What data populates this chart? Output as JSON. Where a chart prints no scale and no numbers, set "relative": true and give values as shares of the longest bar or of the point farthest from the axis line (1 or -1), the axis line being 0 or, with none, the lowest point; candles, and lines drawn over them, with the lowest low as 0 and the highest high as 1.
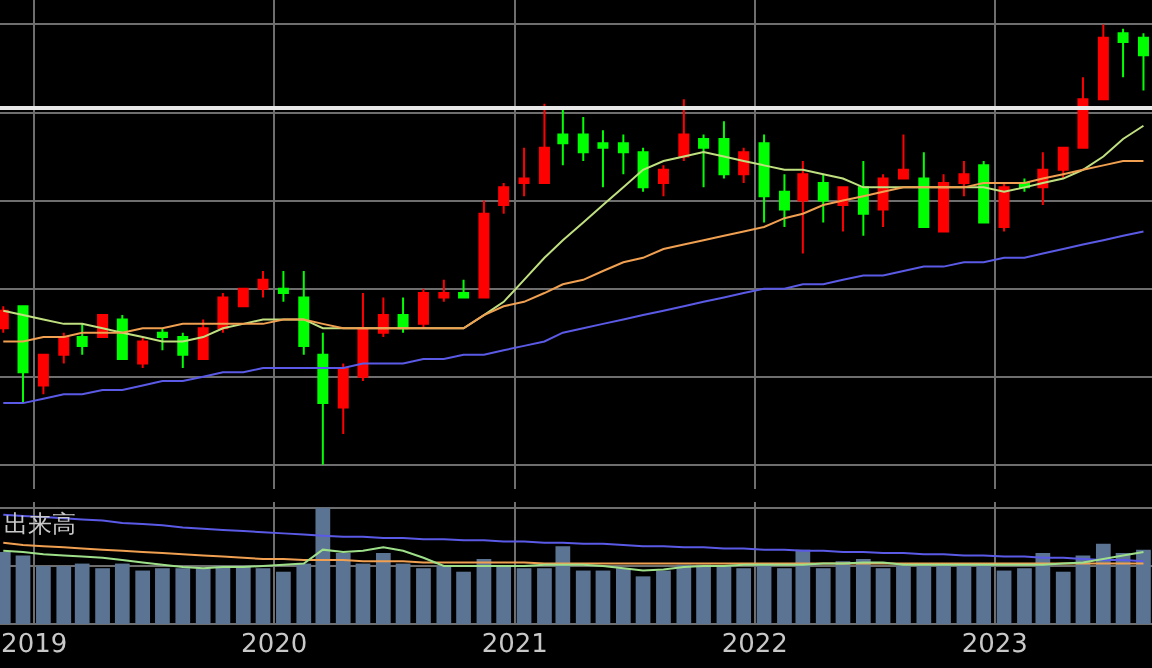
{
  "chart_data": [
    {
      "type": "candlestick",
      "relative": true,
      "tick_labels": false,
      "grid": true,
      "x": [
        "2018-11-15",
        "2018-12-15",
        "2019-01-15",
        "2019-02-15",
        "2019-03-15",
        "2019-04-15",
        "2019-05-15",
        "2019-06-15",
        "2019-07-15",
        "2019-08-15",
        "2019-09-15",
        "2019-10-15",
        "2019-11-15",
        "2019-12-15",
        "2020-01-15",
        "2020-02-15",
        "2020-03-15",
        "2020-04-15",
        "2020-05-15",
        "2020-06-15",
        "2020-07-15",
        "2020-08-15",
        "2020-09-15",
        "2020-10-15",
        "2020-11-15",
        "2020-12-15",
        "2021-01-15",
        "2021-02-15",
        "2021-03-15",
        "2021-04-15",
        "2021-05-15",
        "2021-06-15",
        "2021-07-15",
        "2021-08-15",
        "2021-09-15",
        "2021-10-15",
        "2021-11-15",
        "2021-12-15",
        "2022-01-15",
        "2022-02-15",
        "2022-03-15",
        "2022-04-15",
        "2022-05-15",
        "2022-06-15",
        "2022-07-15",
        "2022-08-15",
        "2022-09-15",
        "2022-10-15",
        "2022-11-15",
        "2022-12-15",
        "2023-01-15",
        "2023-02-15",
        "2023-03-15",
        "2023-04-15",
        "2023-05-15",
        "2023-06-15",
        "2023-07-15",
        "2023-08-15"
      ],
      "xlim": [
        "2018-11-10",
        "2023-08-28"
      ],
      "ohlc": [
        [
          0.31,
          0.36,
          0.3,
          0.35
        ],
        [
          0.36,
          0.36,
          0.14,
          0.21
        ],
        [
          0.18,
          0.25,
          0.16,
          0.25
        ],
        [
          0.25,
          0.3,
          0.23,
          0.29
        ],
        [
          0.29,
          0.32,
          0.25,
          0.27
        ],
        [
          0.29,
          0.34,
          0.29,
          0.34
        ],
        [
          0.33,
          0.34,
          0.24,
          0.24
        ],
        [
          0.23,
          0.29,
          0.22,
          0.28
        ],
        [
          0.3,
          0.31,
          0.26,
          0.29
        ],
        [
          0.29,
          0.3,
          0.22,
          0.25
        ],
        [
          0.24,
          0.33,
          0.24,
          0.31
        ],
        [
          0.31,
          0.39,
          0.3,
          0.38
        ],
        [
          0.36,
          0.4,
          0.36,
          0.4
        ],
        [
          0.4,
          0.44,
          0.38,
          0.42
        ],
        [
          0.4,
          0.44,
          0.37,
          0.39
        ],
        [
          0.38,
          0.44,
          0.25,
          0.27
        ],
        [
          0.25,
          0.3,
          0,
          0.14
        ],
        [
          0.13,
          0.23,
          0.07,
          0.22
        ],
        [
          0.2,
          0.39,
          0.19,
          0.31
        ],
        [
          0.3,
          0.38,
          0.29,
          0.34
        ],
        [
          0.34,
          0.38,
          0.3,
          0.31
        ],
        [
          0.32,
          0.4,
          0.31,
          0.39
        ],
        [
          0.38,
          0.42,
          0.37,
          0.39
        ],
        [
          0.39,
          0.42,
          0.38,
          0.38
        ],
        [
          0.38,
          0.6,
          0.38,
          0.57
        ],
        [
          0.59,
          0.64,
          0.57,
          0.63
        ],
        [
          0.64,
          0.72,
          0.61,
          0.65
        ],
        [
          0.64,
          0.82,
          0.64,
          0.72
        ],
        [
          0.75,
          0.81,
          0.68,
          0.73
        ],
        [
          0.75,
          0.79,
          0.69,
          0.71
        ],
        [
          0.73,
          0.76,
          0.63,
          0.72
        ],
        [
          0.73,
          0.75,
          0.66,
          0.71
        ],
        [
          0.71,
          0.72,
          0.62,
          0.63
        ],
        [
          0.64,
          0.68,
          0.61,
          0.67
        ],
        [
          0.7,
          0.83,
          0.69,
          0.75
        ],
        [
          0.74,
          0.75,
          0.63,
          0.72
        ],
        [
          0.74,
          0.78,
          0.65,
          0.66
        ],
        [
          0.66,
          0.72,
          0.64,
          0.71
        ],
        [
          0.73,
          0.75,
          0.55,
          0.61
        ],
        [
          0.62,
          0.66,
          0.54,
          0.58
        ],
        [
          0.6,
          0.69,
          0.48,
          0.66
        ],
        [
          0.64,
          0.66,
          0.55,
          0.6
        ],
        [
          0.59,
          0.63,
          0.53,
          0.63
        ],
        [
          0.63,
          0.69,
          0.52,
          0.57
        ],
        [
          0.58,
          0.66,
          0.54,
          0.65
        ],
        [
          0.65,
          0.75,
          0.65,
          0.67
        ],
        [
          0.65,
          0.71,
          0.54,
          0.54
        ],
        [
          0.53,
          0.66,
          0.53,
          0.64
        ],
        [
          0.64,
          0.69,
          0.61,
          0.66
        ],
        [
          0.68,
          0.69,
          0.55,
          0.55
        ],
        [
          0.54,
          0.64,
          0.53,
          0.63
        ],
        [
          0.64,
          0.65,
          0.62,
          0.63
        ],
        [
          0.63,
          0.71,
          0.59,
          0.67
        ],
        [
          0.67,
          0.72,
          0.65,
          0.72
        ],
        [
          0.72,
          0.88,
          0.72,
          0.83
        ],
        [
          0.83,
          1,
          0.83,
          0.97
        ],
        [
          0.98,
          0.99,
          0.88,
          0.96
        ],
        [
          0.97,
          0.98,
          0.85,
          0.93
        ]
      ],
      "colors": [
        "#ff0000",
        "#00ff00",
        "#ff0000",
        "#ff0000",
        "#00ff00",
        "#ff0000",
        "#00ff00",
        "#ff0000",
        "#00ff00",
        "#00ff00",
        "#ff0000",
        "#ff0000",
        "#ff0000",
        "#ff0000",
        "#00ff00",
        "#00ff00",
        "#00ff00",
        "#ff0000",
        "#ff0000",
        "#ff0000",
        "#00ff00",
        "#ff0000",
        "#ff0000",
        "#00ff00",
        "#ff0000",
        "#ff0000",
        "#ff0000",
        "#ff0000",
        "#00ff00",
        "#00ff00",
        "#00ff00",
        "#00ff00",
        "#00ff00",
        "#ff0000",
        "#ff0000",
        "#00ff00",
        "#00ff00",
        "#ff0000",
        "#00ff00",
        "#00ff00",
        "#ff0000",
        "#00ff00",
        "#ff0000",
        "#00ff00",
        "#ff0000",
        "#ff0000",
        "#00ff00",
        "#ff0000",
        "#ff0000",
        "#00ff00",
        "#ff0000",
        "#00ff00",
        "#ff0000",
        "#ff0000",
        "#ff0000",
        "#ff0000",
        "#00ff00",
        "#00ff00"
      ],
      "ref_lines": [
        {
          "axis": "y",
          "value": 0.81,
          "color": "#e8e8e8"
        }
      ],
      "series": [
        {
          "type": "line",
          "color": "#c0e080",
          "values": [
            0.35,
            0.34,
            0.33,
            0.32,
            0.32,
            0.31,
            0.3,
            0.29,
            0.28,
            0.28,
            0.29,
            0.31,
            0.32,
            0.33,
            0.33,
            0.33,
            0.31,
            0.31,
            0.31,
            0.31,
            0.31,
            0.31,
            0.31,
            0.31,
            0.34,
            0.37,
            0.42,
            0.47,
            0.51,
            0.55,
            0.59,
            0.63,
            0.67,
            0.69,
            0.7,
            0.71,
            0.7,
            0.69,
            0.68,
            0.67,
            0.67,
            0.66,
            0.65,
            0.63,
            0.63,
            0.63,
            0.63,
            0.63,
            0.63,
            0.63,
            0.62,
            0.63,
            0.64,
            0.65,
            0.67,
            0.7,
            0.74,
            0.77
          ]
        },
        {
          "type": "line",
          "color": "#f0a050",
          "values": [
            0.28,
            0.28,
            0.29,
            0.29,
            0.3,
            0.3,
            0.3,
            0.31,
            0.31,
            0.32,
            0.32,
            0.32,
            0.32,
            0.32,
            0.33,
            0.33,
            0.32,
            0.31,
            0.31,
            0.31,
            0.31,
            0.31,
            0.31,
            0.31,
            0.34,
            0.36,
            0.37,
            0.39,
            0.41,
            0.42,
            0.44,
            0.46,
            0.47,
            0.49,
            0.5,
            0.51,
            0.52,
            0.53,
            0.54,
            0.56,
            0.57,
            0.59,
            0.6,
            0.61,
            0.62,
            0.63,
            0.63,
            0.63,
            0.63,
            0.64,
            0.64,
            0.64,
            0.65,
            0.66,
            0.67,
            0.68,
            0.69,
            0.69
          ]
        },
        {
          "type": "line",
          "color": "#5a5ae6",
          "values": [
            0.14,
            0.14,
            0.15,
            0.16,
            0.16,
            0.17,
            0.17,
            0.18,
            0.19,
            0.19,
            0.2,
            0.21,
            0.21,
            0.22,
            0.22,
            0.22,
            0.22,
            0.22,
            0.23,
            0.23,
            0.23,
            0.24,
            0.24,
            0.25,
            0.25,
            0.26,
            0.27,
            0.28,
            0.3,
            0.31,
            0.32,
            0.33,
            0.34,
            0.35,
            0.36,
            0.37,
            0.38,
            0.39,
            0.4,
            0.4,
            0.41,
            0.41,
            0.42,
            0.43,
            0.43,
            0.44,
            0.45,
            0.45,
            0.46,
            0.46,
            0.47,
            0.47,
            0.48,
            0.49,
            0.5,
            0.51,
            0.52,
            0.53
          ]
        }
      ]
    },
    {
      "type": "bar",
      "relative": true,
      "grid": true,
      "x": [
        "2018-11-15",
        "2018-12-15",
        "2019-01-15",
        "2019-02-15",
        "2019-03-15",
        "2019-04-15",
        "2019-05-15",
        "2019-06-15",
        "2019-07-15",
        "2019-08-15",
        "2019-09-15",
        "2019-10-15",
        "2019-11-15",
        "2019-12-15",
        "2020-01-15",
        "2020-02-15",
        "2020-03-15",
        "2020-04-15",
        "2020-05-15",
        "2020-06-15",
        "2020-07-15",
        "2020-08-15",
        "2020-09-15",
        "2020-10-15",
        "2020-11-15",
        "2020-12-15",
        "2021-01-15",
        "2021-02-15",
        "2021-03-15",
        "2021-04-15",
        "2021-05-15",
        "2021-06-15",
        "2021-07-15",
        "2021-08-15",
        "2021-09-15",
        "2021-10-15",
        "2021-11-15",
        "2021-12-15",
        "2022-01-15",
        "2022-02-15",
        "2022-03-15",
        "2022-04-15",
        "2022-05-15",
        "2022-06-15",
        "2022-07-15",
        "2022-08-15",
        "2022-09-15",
        "2022-10-15",
        "2022-11-15",
        "2022-12-15",
        "2023-01-15",
        "2023-02-15",
        "2023-03-15",
        "2023-04-15",
        "2023-05-15",
        "2023-06-15",
        "2023-07-15",
        "2023-08-15"
      ],
      "xlim": [
        "2018-11-10",
        "2023-08-28"
      ],
      "xticks": [
        {
          "value": "2019-01-01",
          "label": "2019"
        },
        {
          "value": "2020-01-01",
          "label": "2020"
        },
        {
          "value": "2021-01-01",
          "label": "2021"
        },
        {
          "value": "2022-01-01",
          "label": "2022"
        },
        {
          "value": "2023-01-01",
          "label": "2023"
        }
      ],
      "annotations": [
        "出来高"
      ],
      "series": [
        {
          "type": "bar",
          "color": "#5b7493",
          "values": [
            0.62,
            0.59,
            0.5,
            0.5,
            0.52,
            0.48,
            0.52,
            0.46,
            0.48,
            0.48,
            0.48,
            0.5,
            0.5,
            0.48,
            0.45,
            0.52,
            1,
            0.61,
            0.52,
            0.61,
            0.52,
            0.48,
            0.5,
            0.45,
            0.56,
            0.5,
            0.48,
            0.48,
            0.67,
            0.46,
            0.46,
            0.48,
            0.41,
            0.46,
            0.51,
            0.51,
            0.5,
            0.48,
            0.51,
            0.48,
            0.64,
            0.48,
            0.54,
            0.56,
            0.48,
            0.5,
            0.5,
            0.51,
            0.52,
            0.52,
            0.46,
            0.48,
            0.61,
            0.45,
            0.59,
            0.69,
            0.61,
            0.64
          ]
        },
        {
          "type": "line",
          "color": "#5a5ae6",
          "values": [
            0.94,
            0.93,
            0.92,
            0.91,
            0.9,
            0.89,
            0.87,
            0.86,
            0.85,
            0.83,
            0.82,
            0.81,
            0.8,
            0.79,
            0.78,
            0.77,
            0.76,
            0.75,
            0.75,
            0.74,
            0.74,
            0.73,
            0.73,
            0.72,
            0.72,
            0.71,
            0.71,
            0.7,
            0.7,
            0.69,
            0.69,
            0.68,
            0.67,
            0.67,
            0.66,
            0.66,
            0.65,
            0.65,
            0.64,
            0.64,
            0.63,
            0.63,
            0.62,
            0.62,
            0.61,
            0.61,
            0.6,
            0.6,
            0.59,
            0.59,
            0.58,
            0.58,
            0.57,
            0.57,
            0.56,
            0.55,
            0.55,
            0.54
          ]
        },
        {
          "type": "line",
          "color": "#f0a050",
          "values": [
            0.7,
            0.68,
            0.67,
            0.66,
            0.65,
            0.64,
            0.63,
            0.62,
            0.61,
            0.6,
            0.59,
            0.58,
            0.57,
            0.56,
            0.56,
            0.55,
            0.55,
            0.55,
            0.54,
            0.54,
            0.54,
            0.53,
            0.53,
            0.53,
            0.53,
            0.53,
            0.53,
            0.52,
            0.52,
            0.52,
            0.52,
            0.52,
            0.52,
            0.52,
            0.52,
            0.52,
            0.52,
            0.52,
            0.52,
            0.52,
            0.52,
            0.52,
            0.52,
            0.52,
            0.52,
            0.52,
            0.52,
            0.52,
            0.52,
            0.52,
            0.52,
            0.52,
            0.52,
            0.52,
            0.52,
            0.52,
            0.52,
            0.52
          ]
        },
        {
          "type": "line",
          "color": "#9ee08a",
          "values": [
            0.63,
            0.62,
            0.6,
            0.59,
            0.58,
            0.57,
            0.55,
            0.53,
            0.51,
            0.49,
            0.48,
            0.49,
            0.49,
            0.5,
            0.51,
            0.52,
            0.64,
            0.62,
            0.63,
            0.66,
            0.63,
            0.57,
            0.5,
            0.5,
            0.5,
            0.5,
            0.5,
            0.51,
            0.51,
            0.51,
            0.5,
            0.48,
            0.46,
            0.47,
            0.49,
            0.5,
            0.5,
            0.51,
            0.51,
            0.51,
            0.51,
            0.52,
            0.52,
            0.53,
            0.53,
            0.51,
            0.51,
            0.51,
            0.51,
            0.51,
            0.51,
            0.51,
            0.51,
            0.52,
            0.53,
            0.56,
            0.59,
            0.62
          ]
        }
      ]
    }
  ]
}
